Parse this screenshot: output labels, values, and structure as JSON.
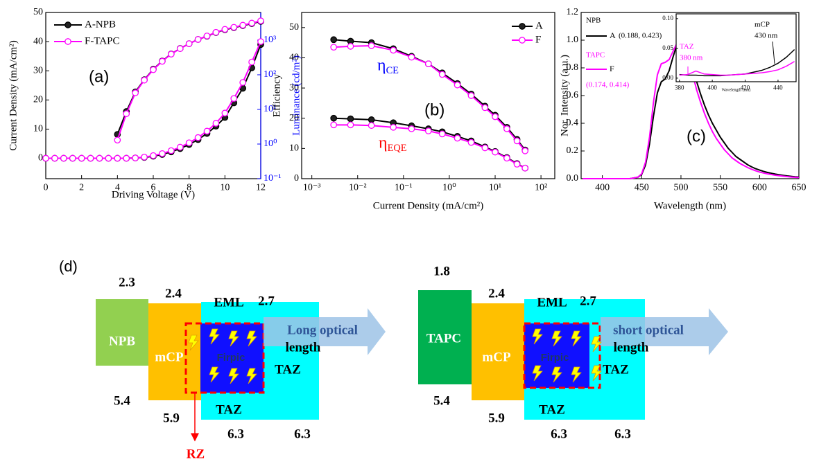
{
  "chart_data": [
    {
      "type": "line",
      "markers": true,
      "legend": "upper left",
      "xlabel": "Driving Voltage (V)",
      "ylabel": "Current Density (mA/cm²)",
      "y2label": "Luminance (cd/m²)",
      "y2_color": "#0000ff",
      "x": [
        0,
        0.5,
        1,
        1.5,
        2,
        2.5,
        3,
        3.5,
        4,
        4.5,
        5,
        5.5,
        6,
        6.5,
        7,
        7.5,
        8,
        8.5,
        9,
        9.5,
        10,
        10.5,
        11,
        11.5,
        12
      ],
      "xlim": [
        0,
        12
      ],
      "xticks": [
        0,
        2,
        4,
        6,
        8,
        10,
        12
      ],
      "ylim": [
        -7,
        50
      ],
      "yticks": [
        0,
        10,
        20,
        30,
        40,
        50
      ],
      "y2_log": true,
      "y2lim": [
        0.1,
        6300
      ],
      "y2ticks": [
        {
          "value": 0.1,
          "label": "10⁻¹"
        },
        {
          "value": 1,
          "label": "10⁰"
        },
        {
          "value": 10,
          "label": "10¹"
        },
        {
          "value": 100,
          "label": "10²"
        },
        {
          "value": 1000,
          "label": "10³"
        }
      ],
      "series": [
        {
          "name": "A-NPB",
          "color": "#000000",
          "filled": true,
          "values": [
            0,
            0,
            0,
            0,
            0,
            0,
            0,
            0,
            0,
            0,
            0.1,
            0.3,
            0.7,
            1.3,
            2.2,
            3.3,
            4.7,
            6.4,
            8.5,
            11,
            14,
            19,
            24,
            31,
            39
          ]
        },
        {
          "name": "F-TAPC",
          "color": "#ff00ff",
          "filled": false,
          "values": [
            0,
            0,
            0,
            0,
            0,
            0,
            0,
            0,
            0,
            0,
            0.1,
            0.4,
            0.9,
            1.6,
            2.6,
            3.8,
            5.3,
            7.1,
            9.3,
            12,
            15.5,
            20.5,
            26,
            33,
            40
          ]
        },
        {
          "color": "#000000",
          "filled": true,
          "axis": "y2",
          "values": [
            null,
            null,
            null,
            null,
            null,
            null,
            null,
            null,
            1.9,
            8.7,
            32,
            72,
            145,
            250,
            400,
            575,
            790,
            1050,
            1300,
            1660,
            2000,
            2300,
            2630,
            3000,
            3470
          ]
        },
        {
          "color": "#ff00ff",
          "filled": false,
          "axis": "y2",
          "values": [
            null,
            null,
            null,
            null,
            null,
            null,
            null,
            null,
            1.3,
            7.5,
            30,
            70,
            140,
            245,
            395,
            570,
            790,
            1050,
            1320,
            1680,
            2050,
            2350,
            2700,
            3100,
            3600
          ]
        }
      ],
      "annotations": [
        {
          "text": "(a)"
        }
      ]
    },
    {
      "type": "line",
      "markers": true,
      "legend": "upper right",
      "xlabel": "Current Density (mA/cm²)",
      "ylabel": "Efficiency",
      "x_log": true,
      "x": [
        0.003,
        0.007,
        0.02,
        0.06,
        0.15,
        0.35,
        0.7,
        1.5,
        3,
        6,
        10,
        18,
        30,
        45
      ],
      "xlim": [
        0.0006,
        200
      ],
      "xticks": [
        {
          "value": 0.001,
          "label": "10⁻³"
        },
        {
          "value": 0.01,
          "label": "10⁻²"
        },
        {
          "value": 0.1,
          "label": "10⁻¹"
        },
        {
          "value": 1,
          "label": "10⁰"
        },
        {
          "value": 10,
          "label": "10¹"
        },
        {
          "value": 100,
          "label": "10²"
        }
      ],
      "ylim": [
        0,
        55
      ],
      "yticks": [
        0,
        10,
        20,
        30,
        40,
        50
      ],
      "series": [
        {
          "name": "A",
          "color": "#000000",
          "filled": true,
          "values": [
            46,
            45.5,
            45,
            43,
            40.5,
            38,
            35,
            31.5,
            28,
            24,
            21,
            17,
            13,
            9.5
          ]
        },
        {
          "name": "F",
          "color": "#ff00ff",
          "filled": false,
          "values": [
            43.5,
            43.8,
            44,
            42.5,
            40.2,
            38,
            34.5,
            31,
            27.5,
            23.5,
            20.5,
            16.5,
            12.5,
            9.2
          ]
        },
        {
          "color": "#000000",
          "filled": true,
          "values": [
            20,
            19.8,
            19.5,
            18.5,
            17.5,
            16.5,
            15.5,
            14,
            12.5,
            10.5,
            9,
            7,
            5,
            3.5
          ]
        },
        {
          "color": "#ff00ff",
          "filled": false,
          "values": [
            17.8,
            17.8,
            17.6,
            17,
            16.5,
            15.8,
            14.8,
            13.4,
            12,
            10.2,
            8.8,
            6.8,
            4.8,
            3.5
          ]
        }
      ],
      "annotations": [
        {
          "text": "η",
          "sub": "CE",
          "color": "#0000ff"
        },
        {
          "text": "η",
          "sub": "EQE",
          "color": "#ff0000"
        },
        {
          "text": "(b)"
        }
      ]
    },
    {
      "type": "line",
      "markers": false,
      "legend": "upper left",
      "xlabel": "Wavelength (nm)",
      "ylabel": "Nor. Intensity (a.u.)",
      "x": [
        375,
        380,
        385,
        390,
        395,
        400,
        405,
        410,
        415,
        420,
        425,
        430,
        435,
        440,
        445,
        450,
        455,
        460,
        465,
        470,
        475,
        480,
        485,
        490,
        495,
        500,
        505,
        510,
        515,
        520,
        525,
        530,
        535,
        540,
        545,
        550,
        555,
        560,
        565,
        570,
        575,
        580,
        585,
        590,
        595,
        600,
        605,
        610,
        615,
        620,
        625,
        630,
        635,
        640,
        645,
        650
      ],
      "xlim": [
        373,
        650
      ],
      "xticks": [
        400,
        450,
        500,
        550,
        600,
        650
      ],
      "ylim": [
        0,
        1.2
      ],
      "yticks": [
        {
          "value": 0,
          "label": "0.0"
        },
        0.2,
        0.4,
        0.6,
        0.8,
        {
          "value": 1,
          "label": "1.0"
        },
        1.2
      ],
      "series": [
        {
          "name": "A",
          "color": "#000000",
          "values": [
            0,
            0,
            0,
            0,
            0,
            0,
            0,
            0,
            0,
            0,
            0,
            0,
            0,
            0.005,
            0.01,
            0.03,
            0.1,
            0.25,
            0.45,
            0.62,
            0.7,
            0.72,
            0.78,
            0.88,
            0.97,
            1.0,
            0.97,
            0.9,
            0.8,
            0.7,
            0.61,
            0.53,
            0.46,
            0.4,
            0.35,
            0.3,
            0.26,
            0.22,
            0.19,
            0.16,
            0.14,
            0.12,
            0.1,
            0.085,
            0.072,
            0.062,
            0.053,
            0.045,
            0.039,
            0.033,
            0.028,
            0.024,
            0.02,
            0.017,
            0.014,
            0.012
          ]
        },
        {
          "name": "F",
          "color": "#ff00ff",
          "values": [
            0,
            0,
            0,
            0,
            0,
            0,
            0,
            0,
            0,
            0,
            0,
            0,
            0,
            0.005,
            0.01,
            0.035,
            0.12,
            0.3,
            0.55,
            0.75,
            0.83,
            0.84,
            0.86,
            0.92,
            0.98,
            1.0,
            0.95,
            0.86,
            0.75,
            0.64,
            0.55,
            0.47,
            0.4,
            0.34,
            0.29,
            0.25,
            0.21,
            0.18,
            0.15,
            0.13,
            0.11,
            0.095,
            0.08,
            0.068,
            0.057,
            0.048,
            0.041,
            0.035,
            0.03,
            0.025,
            0.021,
            0.018,
            0.015,
            0.012,
            0.01,
            0.008
          ]
        }
      ],
      "annotations": [
        {
          "text": "NPB",
          "color": "#000000"
        },
        {
          "text": "(0.188, 0.423)",
          "color": "#000000"
        },
        {
          "text": "TAPC",
          "color": "#ff00ff"
        },
        {
          "text": "(0.174, 0.414)",
          "color": "#ff00ff"
        },
        {
          "text": "(c)",
          "color": "#000000"
        }
      ]
    },
    {
      "type": "line",
      "markers": false,
      "inset": true,
      "xlabel": "Wavelength (nm)",
      "x": [
        380,
        385,
        390,
        395,
        400,
        405,
        410,
        415,
        420,
        425,
        430,
        435,
        440,
        445,
        450
      ],
      "xlim": [
        378,
        451
      ],
      "xticks": [
        380,
        400,
        420,
        440
      ],
      "ylim": [
        -0.006,
        0.108
      ],
      "yticks": [
        {
          "value": 0,
          "label": "0.00"
        },
        {
          "value": 0.05,
          "label": "0.05"
        },
        {
          "value": 0.1,
          "label": "0.10"
        }
      ],
      "series": [
        {
          "color": "#000000",
          "values": [
            0.006,
            0.005,
            0.005,
            0.004,
            0.004,
            0.004,
            0.005,
            0.006,
            0.007,
            0.01,
            0.013,
            0.018,
            0.025,
            0.035,
            0.048
          ]
        },
        {
          "color": "#ff00ff",
          "values": [
            0.005,
            0.006,
            0.012,
            0.007,
            0.006,
            0.005,
            0.005,
            0.006,
            0.007,
            0.008,
            0.009,
            0.011,
            0.014,
            0.02,
            0.028
          ]
        }
      ],
      "annotations": [
        {
          "text": "TAZ",
          "color": "#ff00ff"
        },
        {
          "text": "380 nm",
          "color": "#ff00ff"
        },
        {
          "text": "mCP",
          "color": "#000000"
        },
        {
          "text": "430 nm",
          "color": "#000000"
        }
      ]
    }
  ],
  "diagram": {
    "label": "(d)",
    "panels": [
      {
        "htl_lumo": "2.3",
        "htl": "NPB",
        "htl_homo": "5.4",
        "host_lumo": "2.4",
        "host": "mCP",
        "host_homo": "5.9",
        "eml": "EML",
        "etl_lumo": "2.7",
        "dopant": "Firpic",
        "etl": "TAZ",
        "eml_host": "TAZ",
        "eml_homo": "6.3",
        "etl_homo": "6.3",
        "arrow": [
          "Long optical",
          "length"
        ],
        "zone": "RZ"
      },
      {
        "htl_lumo": "1.8",
        "htl": "TAPC",
        "htl_homo": "5.4",
        "host_lumo": "2.4",
        "host": "mCP",
        "host_homo": "5.9",
        "eml": "EML",
        "etl_lumo": "2.7",
        "dopant": "Firpic",
        "etl": "TAZ",
        "eml_host": "TAZ",
        "eml_homo": "6.3",
        "etl_homo": "6.3",
        "arrow": [
          "short optical",
          "length"
        ]
      }
    ]
  }
}
